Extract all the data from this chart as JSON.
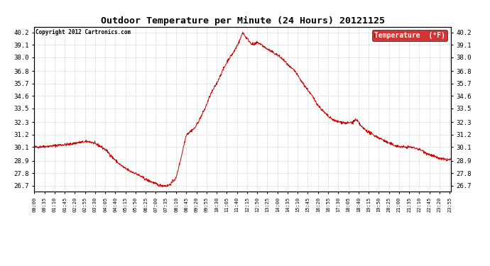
{
  "title": "Outdoor Temperature per Minute (24 Hours) 20121125",
  "copyright_text": "Copyright 2012 Cartronics.com",
  "legend_label": "Temperature  (°F)",
  "legend_bg": "#cc0000",
  "legend_text_color": "#ffffff",
  "line_color": "#cc0000",
  "background_color": "#ffffff",
  "grid_color": "#bbbbbb",
  "yticks": [
    26.7,
    27.8,
    28.9,
    30.1,
    31.2,
    32.3,
    33.5,
    34.6,
    35.7,
    36.8,
    38.0,
    39.1,
    40.2
  ],
  "ylim": [
    26.2,
    40.7
  ],
  "total_minutes": 1440,
  "xtick_interval": 35,
  "keypoints": [
    [
      0,
      30.1
    ],
    [
      30,
      30.15
    ],
    [
      60,
      30.2
    ],
    [
      90,
      30.3
    ],
    [
      120,
      30.35
    ],
    [
      150,
      30.5
    ],
    [
      170,
      30.55
    ],
    [
      190,
      30.6
    ],
    [
      210,
      30.4
    ],
    [
      230,
      30.15
    ],
    [
      250,
      29.8
    ],
    [
      270,
      29.2
    ],
    [
      290,
      28.7
    ],
    [
      310,
      28.3
    ],
    [
      330,
      28.0
    ],
    [
      350,
      27.8
    ],
    [
      370,
      27.5
    ],
    [
      390,
      27.2
    ],
    [
      410,
      27.0
    ],
    [
      430,
      26.75
    ],
    [
      450,
      26.72
    ],
    [
      460,
      26.7
    ],
    [
      470,
      26.85
    ],
    [
      490,
      27.4
    ],
    [
      510,
      29.5
    ],
    [
      525,
      31.2
    ],
    [
      540,
      31.5
    ],
    [
      555,
      31.8
    ],
    [
      570,
      32.5
    ],
    [
      590,
      33.5
    ],
    [
      610,
      34.8
    ],
    [
      630,
      35.7
    ],
    [
      650,
      36.8
    ],
    [
      670,
      37.8
    ],
    [
      690,
      38.5
    ],
    [
      710,
      39.5
    ],
    [
      720,
      40.2
    ],
    [
      730,
      39.8
    ],
    [
      740,
      39.5
    ],
    [
      750,
      39.2
    ],
    [
      760,
      39.1
    ],
    [
      770,
      39.3
    ],
    [
      780,
      39.2
    ],
    [
      800,
      38.8
    ],
    [
      820,
      38.5
    ],
    [
      840,
      38.2
    ],
    [
      860,
      37.8
    ],
    [
      880,
      37.2
    ],
    [
      900,
      36.8
    ],
    [
      920,
      36.0
    ],
    [
      940,
      35.3
    ],
    [
      960,
      34.6
    ],
    [
      980,
      33.8
    ],
    [
      1000,
      33.2
    ],
    [
      1020,
      32.7
    ],
    [
      1040,
      32.4
    ],
    [
      1060,
      32.3
    ],
    [
      1080,
      32.2
    ],
    [
      1100,
      32.3
    ],
    [
      1110,
      32.5
    ],
    [
      1120,
      32.3
    ],
    [
      1130,
      31.9
    ],
    [
      1150,
      31.5
    ],
    [
      1170,
      31.2
    ],
    [
      1200,
      30.8
    ],
    [
      1220,
      30.5
    ],
    [
      1240,
      30.3
    ],
    [
      1260,
      30.15
    ],
    [
      1280,
      30.1
    ],
    [
      1300,
      30.1
    ],
    [
      1320,
      30.0
    ],
    [
      1340,
      29.8
    ],
    [
      1360,
      29.5
    ],
    [
      1380,
      29.3
    ],
    [
      1400,
      29.1
    ],
    [
      1420,
      29.0
    ],
    [
      1439,
      29.0
    ]
  ]
}
